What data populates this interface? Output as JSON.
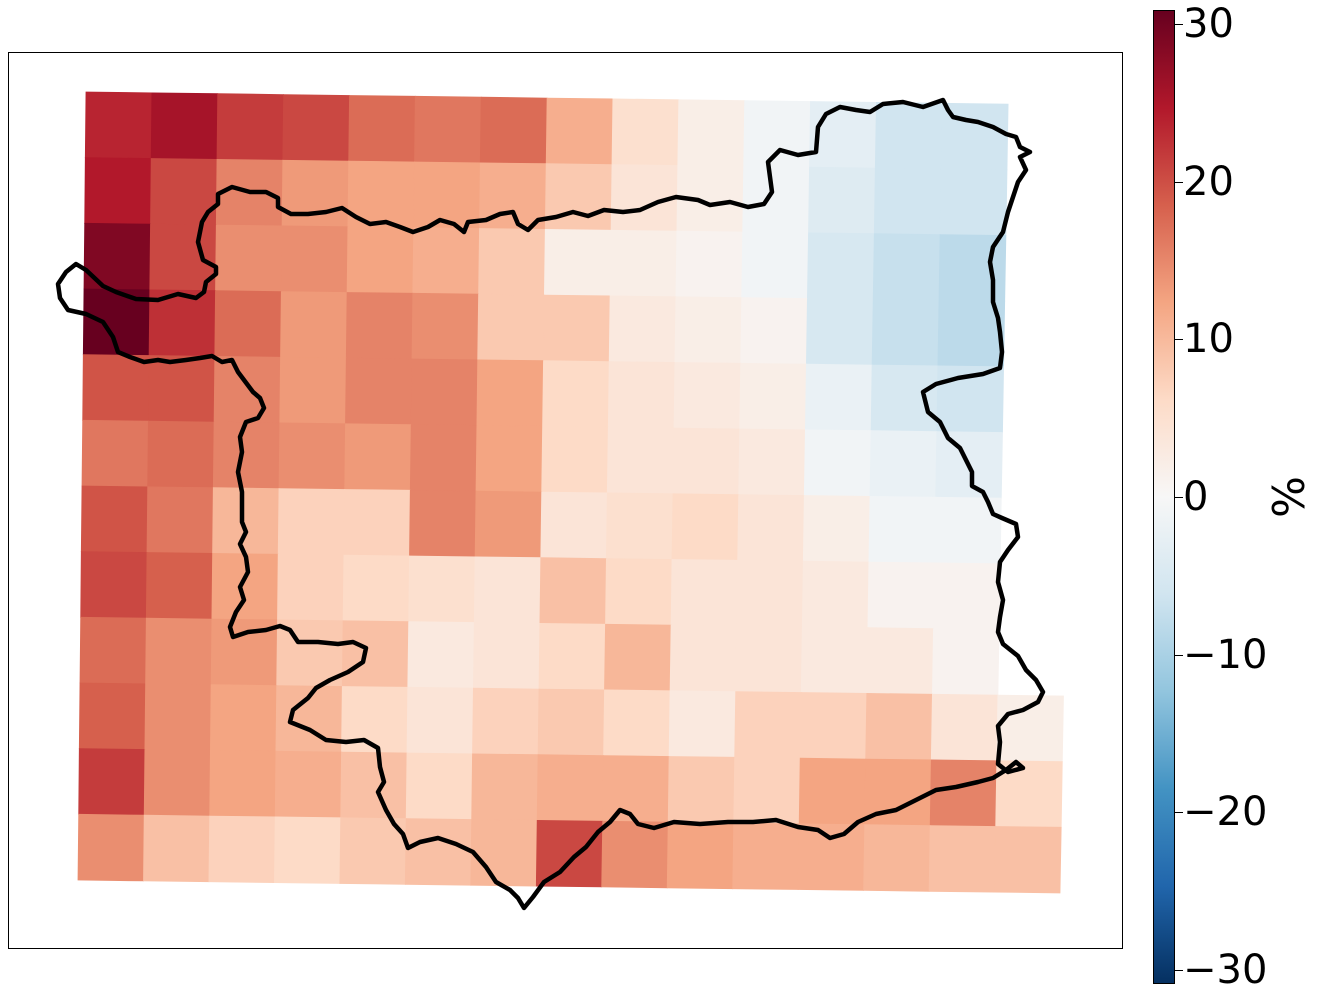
{
  "colorbar": {
    "label": "%",
    "min": -30,
    "max": 30,
    "colormap": "RdBu_r",
    "ticks": [
      {
        "value": 30,
        "label": "30"
      },
      {
        "value": 20,
        "label": "20"
      },
      {
        "value": 10,
        "label": "10"
      },
      {
        "value": 0,
        "label": "0"
      },
      {
        "value": -10,
        "label": "−10"
      },
      {
        "value": -20,
        "label": "−20"
      },
      {
        "value": -30,
        "label": "−30"
      }
    ]
  },
  "grid": {
    "rows": 12,
    "cols": 15,
    "values": [
      [
        23,
        25,
        21,
        20,
        17,
        16,
        17,
        11,
        5,
        2,
        -1,
        -3,
        -6,
        -6,
        null
      ],
      [
        24,
        20,
        15,
        13,
        12,
        12,
        11,
        8,
        4,
        2,
        -1,
        -4,
        -6,
        -6,
        null
      ],
      [
        28,
        20,
        14,
        14,
        12,
        11,
        8,
        2,
        2,
        1,
        -1,
        -5,
        -7,
        -8,
        null
      ],
      [
        30,
        22,
        17,
        13,
        15,
        14,
        8,
        8,
        3,
        2,
        1,
        -5,
        -7,
        -8,
        null
      ],
      [
        19,
        19,
        15,
        13,
        15,
        15,
        12,
        6,
        4,
        3,
        2,
        -2,
        -5,
        -6,
        null
      ],
      [
        16,
        17,
        15,
        14,
        13,
        15,
        12,
        6,
        4,
        4,
        3,
        -1,
        -2,
        -3,
        null
      ],
      [
        19,
        16,
        10,
        7,
        7,
        15,
        13,
        4,
        5,
        6,
        4,
        2,
        -1,
        -1,
        null
      ],
      [
        20,
        18,
        12,
        7,
        6,
        5,
        4,
        9,
        6,
        4,
        4,
        3,
        1,
        1,
        null
      ],
      [
        17,
        14,
        13,
        8,
        9,
        3,
        4,
        6,
        10,
        4,
        4,
        3,
        3,
        1,
        null
      ],
      [
        18,
        14,
        12,
        10,
        6,
        4,
        7,
        8,
        6,
        3,
        7,
        7,
        9,
        4,
        2
      ],
      [
        21,
        14,
        12,
        11,
        9,
        6,
        10,
        11,
        11,
        8,
        7,
        12,
        12,
        15,
        6
      ],
      [
        14,
        9,
        7,
        6,
        8,
        9,
        10,
        20,
        14,
        12,
        11,
        11,
        10,
        9,
        9
      ]
    ]
  },
  "legend": {}
}
